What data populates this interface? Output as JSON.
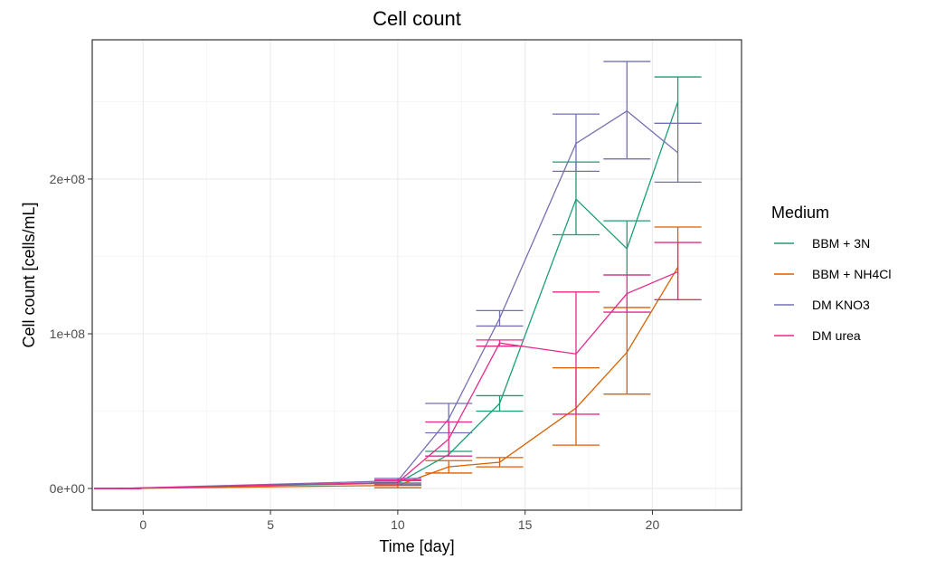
{
  "chart_data": {
    "type": "line",
    "title": "Cell count",
    "xlabel": "Time [day]",
    "ylabel": "Cell count [cells/mL]",
    "xlim": [
      -2,
      23.5
    ],
    "ylim": [
      -14000000.0,
      290000000.0
    ],
    "x_ticks": [
      0,
      5,
      10,
      15,
      20
    ],
    "x_tick_labels": [
      "0",
      "5",
      "10",
      "15",
      "20"
    ],
    "y_ticks": [
      0,
      100000000,
      200000000
    ],
    "y_tick_labels": [
      "0e+00",
      "1e+08",
      "2e+08"
    ],
    "grid": true,
    "error_bars": true,
    "legend": {
      "title": "Medium",
      "position": "right"
    },
    "series": [
      {
        "name": "BBM + 3N",
        "color": "#1b9e77",
        "x": [
          -1,
          10,
          12,
          14,
          17,
          19,
          21
        ],
        "y": [
          0,
          3500000,
          22000000,
          55000000,
          187000000,
          155000000,
          250000000
        ],
        "err_low": [
          0,
          2000000,
          21000000,
          50000000,
          164000000,
          138000000,
          236000000
        ],
        "err_high": [
          0,
          5000000,
          24000000,
          60000000,
          211000000,
          173000000,
          266000000
        ]
      },
      {
        "name": "BBM + NH4Cl",
        "color": "#d95f02",
        "x": [
          -1,
          10,
          12,
          14,
          17,
          19,
          21
        ],
        "y": [
          0,
          2000000,
          14000000,
          17000000,
          52000000,
          88000000,
          143000000
        ],
        "err_low": [
          0,
          500000,
          10000000,
          14000000,
          28000000,
          61000000,
          122000000
        ],
        "err_high": [
          0,
          3500000,
          18000000,
          20000000,
          78000000,
          117000000,
          169000000
        ]
      },
      {
        "name": "DM KNO3",
        "color": "#7570b3",
        "x": [
          -1,
          10,
          12,
          14,
          17,
          19,
          21
        ],
        "y": [
          0,
          5000000,
          45000000,
          110000000,
          223000000,
          244000000,
          217000000
        ],
        "err_low": [
          0,
          3500000,
          36000000,
          105000000,
          205000000,
          213000000,
          198000000
        ],
        "err_high": [
          0,
          6500000,
          55000000,
          115000000,
          242000000,
          276000000,
          236000000
        ]
      },
      {
        "name": "DM urea",
        "color": "#e7298a",
        "x": [
          -1,
          10,
          12,
          14,
          17,
          19,
          21
        ],
        "y": [
          0,
          4000000,
          32000000,
          94000000,
          87000000,
          126000000,
          140000000
        ],
        "err_low": [
          0,
          2500000,
          21000000,
          92000000,
          48000000,
          114000000,
          122000000
        ],
        "err_high": [
          0,
          5500000,
          43000000,
          96000000,
          127000000,
          138000000,
          159000000
        ]
      }
    ]
  }
}
